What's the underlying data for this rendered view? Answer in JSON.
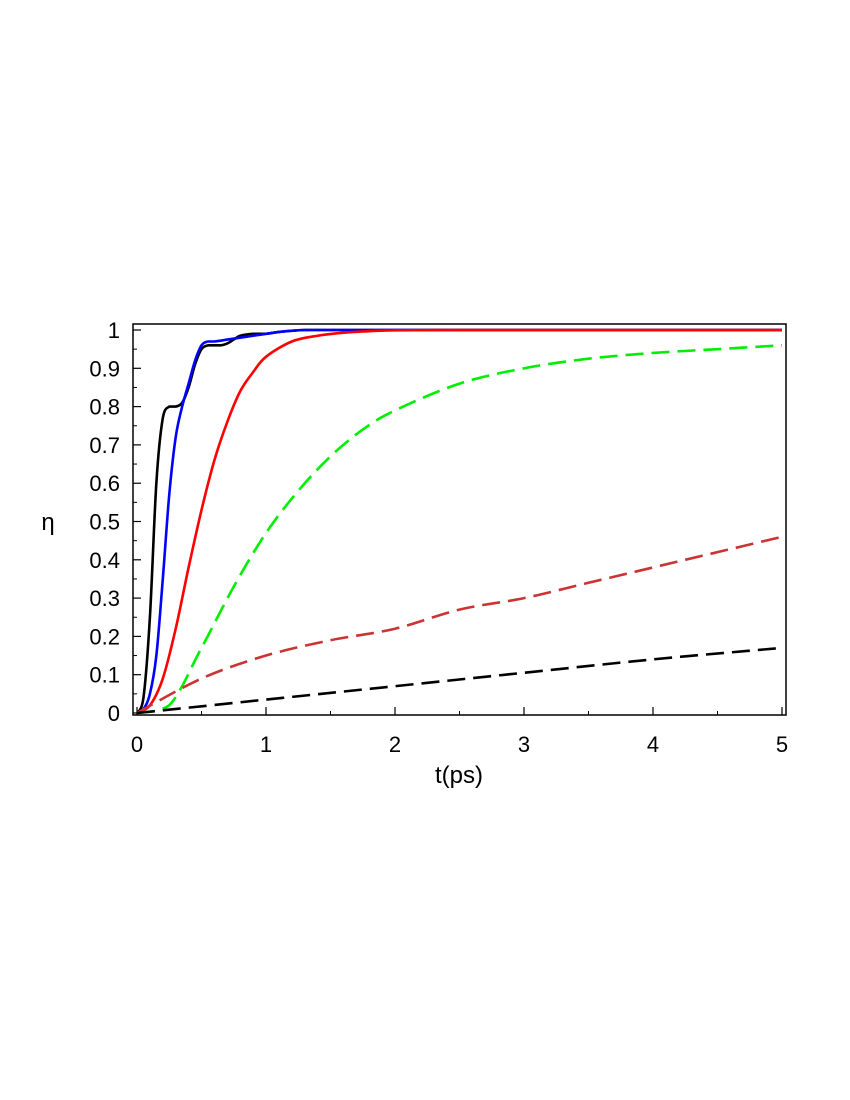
{
  "chart_data": {
    "type": "line",
    "xlabel": "t(ps)",
    "ylabel": "η",
    "xlim": [
      0,
      5
    ],
    "ylim": [
      0,
      1
    ],
    "x_ticks": [
      "0",
      "1",
      "2",
      "3",
      "4",
      "5"
    ],
    "y_ticks": [
      "0",
      "0.1",
      "0.2",
      "0.3",
      "0.4",
      "0.5",
      "0.6",
      "0.7",
      "0.8",
      "0.9",
      "1"
    ],
    "grid": false,
    "legend": "none",
    "series": [
      {
        "color": "#000000",
        "style": "solid",
        "x": [
          0,
          0.05,
          0.1,
          0.15,
          0.2,
          0.25,
          0.3,
          0.35,
          0.4,
          0.45,
          0.5,
          0.55,
          0.6,
          0.65,
          0.7,
          0.75,
          0.8,
          0.9,
          1.0,
          1.1,
          1.3,
          1.5,
          2.0,
          3.0,
          4.0,
          5.0
        ],
        "y": [
          0,
          0.04,
          0.25,
          0.6,
          0.77,
          0.8,
          0.8,
          0.81,
          0.85,
          0.91,
          0.95,
          0.96,
          0.96,
          0.96,
          0.965,
          0.975,
          0.985,
          0.99,
          0.99,
          0.995,
          1.0,
          1.0,
          1.0,
          1.0,
          1.0,
          1.0
        ]
      },
      {
        "color": "#0000ff",
        "style": "solid",
        "x": [
          0,
          0.05,
          0.1,
          0.15,
          0.2,
          0.25,
          0.3,
          0.35,
          0.4,
          0.45,
          0.5,
          0.55,
          0.6,
          0.7,
          0.8,
          0.9,
          1.0,
          1.1,
          1.2,
          1.3,
          1.5,
          2.0,
          3.0,
          4.0,
          5.0
        ],
        "y": [
          0,
          0.01,
          0.05,
          0.15,
          0.35,
          0.57,
          0.72,
          0.8,
          0.86,
          0.92,
          0.96,
          0.97,
          0.97,
          0.975,
          0.98,
          0.985,
          0.99,
          0.995,
          0.998,
          1.0,
          1.0,
          1.0,
          1.0,
          1.0,
          1.0
        ]
      },
      {
        "color": "#ff0000",
        "style": "solid",
        "x": [
          0,
          0.1,
          0.2,
          0.3,
          0.4,
          0.5,
          0.6,
          0.7,
          0.8,
          0.9,
          1.0,
          1.2,
          1.4,
          1.6,
          1.8,
          2.0,
          2.5,
          3.0,
          4.0,
          5.0
        ],
        "y": [
          0,
          0.02,
          0.09,
          0.22,
          0.38,
          0.53,
          0.66,
          0.76,
          0.84,
          0.89,
          0.93,
          0.97,
          0.985,
          0.993,
          0.997,
          0.999,
          1.0,
          1.0,
          1.0,
          1.0
        ]
      },
      {
        "color": "#00ee00",
        "style": "dashed",
        "x": [
          0,
          0.25,
          0.5,
          0.75,
          1.0,
          1.25,
          1.5,
          1.75,
          2.0,
          2.5,
          3.0,
          3.5,
          4.0,
          4.5,
          5.0
        ],
        "y": [
          0,
          0.02,
          0.17,
          0.33,
          0.47,
          0.58,
          0.67,
          0.74,
          0.79,
          0.86,
          0.9,
          0.925,
          0.94,
          0.95,
          0.96
        ]
      },
      {
        "color": "#cc3333",
        "style": "dashed",
        "x": [
          0,
          0.5,
          1.0,
          1.5,
          2.0,
          2.5,
          3.0,
          3.5,
          4.0,
          4.5,
          5.0
        ],
        "y": [
          0,
          0.09,
          0.15,
          0.19,
          0.22,
          0.27,
          0.3,
          0.34,
          0.38,
          0.42,
          0.46
        ]
      },
      {
        "color": "#000000",
        "style": "dashed",
        "x": [
          0,
          1.0,
          2.0,
          3.0,
          4.0,
          5.0
        ],
        "y": [
          0,
          0.035,
          0.07,
          0.105,
          0.14,
          0.17
        ]
      }
    ]
  }
}
